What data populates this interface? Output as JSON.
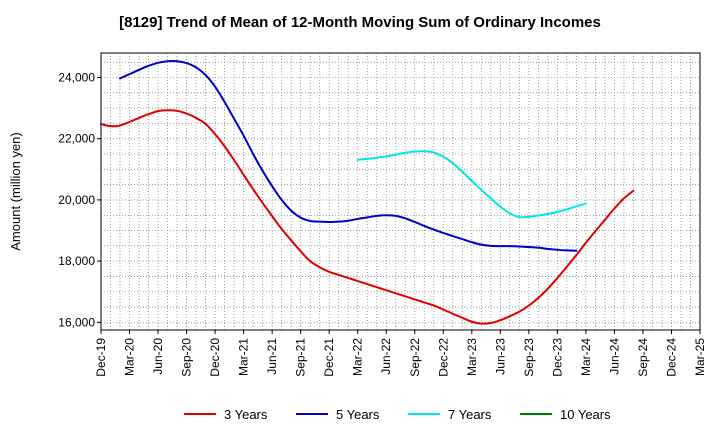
{
  "chart_data": {
    "type": "line",
    "title": "[8129]  Trend of Mean of 12-Month Moving Sum of Ordinary Incomes",
    "xlabel": "",
    "ylabel": "Amount (million yen)",
    "ylim": [
      15750,
      24800
    ],
    "y_ticks": [
      16000,
      18000,
      20000,
      22000,
      24000
    ],
    "y_tick_labels": [
      "16,000",
      "18,000",
      "20,000",
      "22,000",
      "24,000"
    ],
    "x_tick_labels": [
      "Dec-19",
      "Mar-20",
      "Jun-20",
      "Sep-20",
      "Dec-20",
      "Mar-21",
      "Jun-21",
      "Sep-21",
      "Dec-21",
      "Mar-22",
      "Jun-22",
      "Sep-22",
      "Dec-22",
      "Mar-23",
      "Jun-23",
      "Sep-23",
      "Dec-23",
      "Mar-24",
      "Jun-24",
      "Sep-24",
      "Dec-24",
      "Mar-25"
    ],
    "x_start": "Dec-19",
    "x_months_span": 63,
    "grid": true,
    "legend_position": "bottom",
    "series": [
      {
        "name": "3 Years",
        "color": "#e00000",
        "points": [
          [
            0,
            22480
          ],
          [
            1,
            22410
          ],
          [
            2,
            22430
          ],
          [
            3,
            22550
          ],
          [
            4,
            22680
          ],
          [
            5,
            22800
          ],
          [
            6,
            22900
          ],
          [
            7,
            22930
          ],
          [
            8,
            22910
          ],
          [
            9,
            22820
          ],
          [
            10,
            22680
          ],
          [
            11,
            22480
          ],
          [
            12,
            22150
          ],
          [
            13,
            21750
          ],
          [
            14,
            21300
          ],
          [
            15,
            20820
          ],
          [
            16,
            20350
          ],
          [
            17,
            19900
          ],
          [
            18,
            19470
          ],
          [
            19,
            19050
          ],
          [
            20,
            18680
          ],
          [
            21,
            18320
          ],
          [
            22,
            18000
          ],
          [
            23,
            17800
          ],
          [
            24,
            17650
          ],
          [
            25,
            17550
          ],
          [
            26,
            17450
          ],
          [
            27,
            17350
          ],
          [
            28,
            17250
          ],
          [
            29,
            17150
          ],
          [
            30,
            17050
          ],
          [
            31,
            16950
          ],
          [
            32,
            16850
          ],
          [
            33,
            16750
          ],
          [
            34,
            16650
          ],
          [
            35,
            16550
          ],
          [
            36,
            16420
          ],
          [
            37,
            16280
          ],
          [
            38,
            16150
          ],
          [
            39,
            16020
          ],
          [
            40,
            15960
          ],
          [
            41,
            15980
          ],
          [
            42,
            16070
          ],
          [
            43,
            16200
          ],
          [
            44,
            16350
          ],
          [
            45,
            16550
          ],
          [
            46,
            16800
          ],
          [
            47,
            17100
          ],
          [
            48,
            17450
          ],
          [
            49,
            17820
          ],
          [
            50,
            18200
          ],
          [
            51,
            18600
          ],
          [
            52,
            18980
          ],
          [
            53,
            19350
          ],
          [
            54,
            19720
          ],
          [
            55,
            20050
          ],
          [
            56,
            20300
          ]
        ]
      },
      {
        "name": "5 Years",
        "color": "#0000cc",
        "points": [
          [
            2,
            23970
          ],
          [
            3,
            24110
          ],
          [
            4,
            24250
          ],
          [
            5,
            24380
          ],
          [
            6,
            24480
          ],
          [
            7,
            24530
          ],
          [
            8,
            24530
          ],
          [
            9,
            24470
          ],
          [
            10,
            24330
          ],
          [
            11,
            24080
          ],
          [
            12,
            23700
          ],
          [
            13,
            23200
          ],
          [
            14,
            22650
          ],
          [
            15,
            22100
          ],
          [
            16,
            21500
          ],
          [
            17,
            20950
          ],
          [
            18,
            20450
          ],
          [
            19,
            20000
          ],
          [
            20,
            19650
          ],
          [
            21,
            19420
          ],
          [
            22,
            19310
          ],
          [
            23,
            19290
          ],
          [
            24,
            19280
          ],
          [
            25,
            19290
          ],
          [
            26,
            19320
          ],
          [
            27,
            19380
          ],
          [
            28,
            19430
          ],
          [
            29,
            19480
          ],
          [
            30,
            19500
          ],
          [
            31,
            19480
          ],
          [
            32,
            19400
          ],
          [
            33,
            19280
          ],
          [
            34,
            19150
          ],
          [
            35,
            19030
          ],
          [
            36,
            18920
          ],
          [
            37,
            18820
          ],
          [
            38,
            18720
          ],
          [
            39,
            18620
          ],
          [
            40,
            18540
          ],
          [
            41,
            18500
          ],
          [
            42,
            18490
          ],
          [
            43,
            18490
          ],
          [
            44,
            18480
          ],
          [
            45,
            18460
          ],
          [
            46,
            18440
          ],
          [
            47,
            18400
          ],
          [
            48,
            18370
          ],
          [
            49,
            18350
          ],
          [
            50,
            18340
          ]
        ]
      },
      {
        "name": "7 Years",
        "color": "#00e5e5",
        "points": [
          [
            27,
            21310
          ],
          [
            28,
            21340
          ],
          [
            29,
            21380
          ],
          [
            30,
            21420
          ],
          [
            31,
            21480
          ],
          [
            32,
            21540
          ],
          [
            33,
            21580
          ],
          [
            34,
            21590
          ],
          [
            35,
            21550
          ],
          [
            36,
            21420
          ],
          [
            37,
            21200
          ],
          [
            38,
            20920
          ],
          [
            39,
            20620
          ],
          [
            40,
            20330
          ],
          [
            41,
            20050
          ],
          [
            42,
            19780
          ],
          [
            43,
            19560
          ],
          [
            44,
            19440
          ],
          [
            45,
            19450
          ],
          [
            46,
            19490
          ],
          [
            47,
            19540
          ],
          [
            48,
            19610
          ],
          [
            49,
            19690
          ],
          [
            50,
            19790
          ],
          [
            51,
            19880
          ]
        ]
      },
      {
        "name": "10 Years",
        "color": "#008000",
        "points": []
      }
    ]
  }
}
